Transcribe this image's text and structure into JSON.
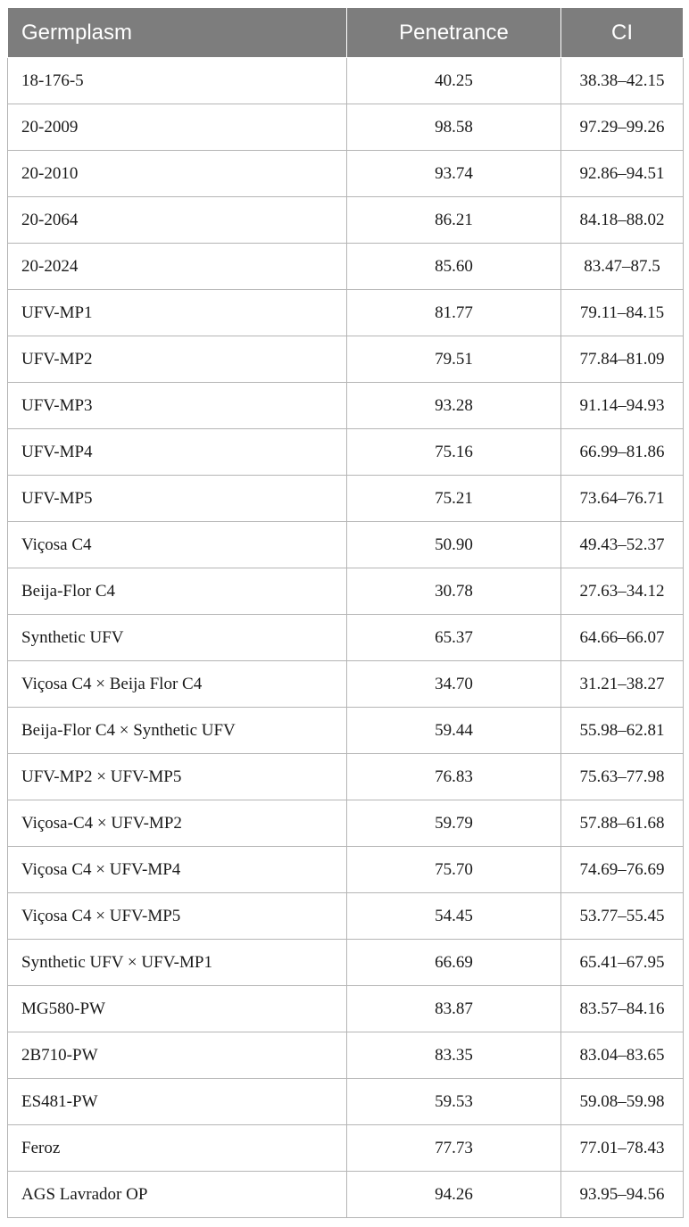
{
  "table": {
    "headers": [
      "Germplasm",
      "Penetrance",
      "CI"
    ],
    "rows": [
      [
        "18-176-5",
        "40.25",
        "38.38–42.15"
      ],
      [
        "20-2009",
        "98.58",
        "97.29–99.26"
      ],
      [
        "20-2010",
        "93.74",
        "92.86–94.51"
      ],
      [
        "20-2064",
        "86.21",
        "84.18–88.02"
      ],
      [
        "20-2024",
        "85.60",
        "83.47–87.5"
      ],
      [
        "UFV-MP1",
        "81.77",
        "79.11–84.15"
      ],
      [
        "UFV-MP2",
        "79.51",
        "77.84–81.09"
      ],
      [
        "UFV-MP3",
        "93.28",
        "91.14–94.93"
      ],
      [
        "UFV-MP4",
        "75.16",
        "66.99–81.86"
      ],
      [
        "UFV-MP5",
        "75.21",
        "73.64–76.71"
      ],
      [
        "Viçosa C4",
        "50.90",
        "49.43–52.37"
      ],
      [
        "Beija-Flor C4",
        "30.78",
        "27.63–34.12"
      ],
      [
        "Synthetic UFV",
        "65.37",
        "64.66–66.07"
      ],
      [
        "Viçosa C4 × Beija Flor C4",
        "34.70",
        "31.21–38.27"
      ],
      [
        "Beija-Flor C4 × Synthetic UFV",
        "59.44",
        "55.98–62.81"
      ],
      [
        "UFV-MP2 × UFV-MP5",
        "76.83",
        "75.63–77.98"
      ],
      [
        "Viçosa-C4 × UFV-MP2",
        "59.79",
        "57.88–61.68"
      ],
      [
        "Viçosa C4 × UFV-MP4",
        "75.70",
        "74.69–76.69"
      ],
      [
        "Viçosa C4 × UFV-MP5",
        "54.45",
        "53.77–55.45"
      ],
      [
        "Synthetic UFV × UFV-MP1",
        "66.69",
        "65.41–67.95"
      ],
      [
        "MG580-PW",
        "83.87",
        "83.57–84.16"
      ],
      [
        "2B710-PW",
        "83.35",
        "83.04–83.65"
      ],
      [
        "ES481-PW",
        "59.53",
        "59.08–59.98"
      ],
      [
        "Feroz",
        "77.73",
        "77.01–78.43"
      ],
      [
        "AGS Lavrador OP",
        "94.26",
        "93.95–94.56"
      ]
    ]
  }
}
